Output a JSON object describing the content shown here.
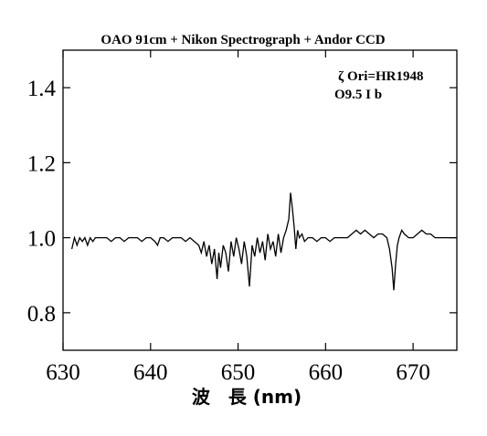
{
  "chart_data": {
    "type": "line",
    "title": "OAO 91cm + Nikon Spectrograph + Andor CCD",
    "annotations": [
      "ζ Ori=HR1948",
      "O9.5 I b"
    ],
    "xlabel": "波　長 (nm)",
    "ylabel": "",
    "xlim": [
      630,
      675
    ],
    "ylim": [
      0.7,
      1.5
    ],
    "xticks": [
      630,
      640,
      650,
      660,
      670
    ],
    "xtick_labels": [
      "630",
      "640",
      "650",
      "660",
      "670"
    ],
    "yticks": [
      0.8,
      1.0,
      1.2,
      1.4
    ],
    "ytick_labels": [
      "0.8",
      "1.0",
      "1.2",
      "1.4"
    ],
    "grid": false,
    "series": [
      {
        "x": [
          631.0,
          631.3,
          631.6,
          631.9,
          632.2,
          632.5,
          632.8,
          633.1,
          633.4,
          633.7,
          634.0,
          634.5,
          635.0,
          635.5,
          636.0,
          636.5,
          637.0,
          637.5,
          638.0,
          638.5,
          639.0,
          639.5,
          640.0,
          640.5,
          640.8,
          641.1,
          641.5,
          642.0,
          642.5,
          643.0,
          643.5,
          644.0,
          644.5,
          645.0,
          645.5,
          645.8,
          646.1,
          646.4,
          646.7,
          647.0,
          647.3,
          647.6,
          647.8,
          648.0,
          648.3,
          648.6,
          648.9,
          649.2,
          649.5,
          649.8,
          650.1,
          650.4,
          650.7,
          651.0,
          651.3,
          651.6,
          651.9,
          652.2,
          652.5,
          652.8,
          653.1,
          653.4,
          653.7,
          654.0,
          654.3,
          654.6,
          654.9,
          655.2,
          655.5,
          655.8,
          656.0,
          656.2,
          656.4,
          656.6,
          656.8,
          657.0,
          657.3,
          657.6,
          658.0,
          658.5,
          659.0,
          659.5,
          660.0,
          660.5,
          661.0,
          661.5,
          662.0,
          662.5,
          663.0,
          663.5,
          664.0,
          664.5,
          665.0,
          665.5,
          666.0,
          666.5,
          667.0,
          667.3,
          667.6,
          667.8,
          668.0,
          668.2,
          668.4,
          668.7,
          669.0,
          669.5,
          670.0,
          670.5,
          671.0,
          671.5,
          672.0,
          672.5,
          673.0,
          673.5,
          674.0,
          674.5,
          675.0
        ],
        "values": [
          0.97,
          1.0,
          0.98,
          1.0,
          0.99,
          1.0,
          0.98,
          1.0,
          0.99,
          1.0,
          1.0,
          1.0,
          1.0,
          0.99,
          1.0,
          1.0,
          0.99,
          1.0,
          1.0,
          1.0,
          0.99,
          1.0,
          1.0,
          0.99,
          0.98,
          1.0,
          1.0,
          0.99,
          1.0,
          1.0,
          1.0,
          0.99,
          1.0,
          0.99,
          0.98,
          0.96,
          0.99,
          0.95,
          0.98,
          0.93,
          0.97,
          0.89,
          0.96,
          0.92,
          0.98,
          0.96,
          0.91,
          0.99,
          0.95,
          1.0,
          0.97,
          0.93,
          0.99,
          0.95,
          0.87,
          0.98,
          0.95,
          1.0,
          0.96,
          0.99,
          0.94,
          1.01,
          0.97,
          0.99,
          0.95,
          1.01,
          0.96,
          1.0,
          1.02,
          1.05,
          1.12,
          1.08,
          1.03,
          0.97,
          1.02,
          1.0,
          1.01,
          0.99,
          1.0,
          1.0,
          0.99,
          1.0,
          1.0,
          0.99,
          1.0,
          1.0,
          1.0,
          1.0,
          1.01,
          1.02,
          1.01,
          1.02,
          1.01,
          1.0,
          1.01,
          1.01,
          1.0,
          0.97,
          0.92,
          0.86,
          0.93,
          0.98,
          1.0,
          1.02,
          1.01,
          1.0,
          1.0,
          1.01,
          1.02,
          1.01,
          1.01,
          1.0,
          1.0,
          1.0,
          1.0,
          1.0,
          1.0
        ]
      }
    ]
  }
}
